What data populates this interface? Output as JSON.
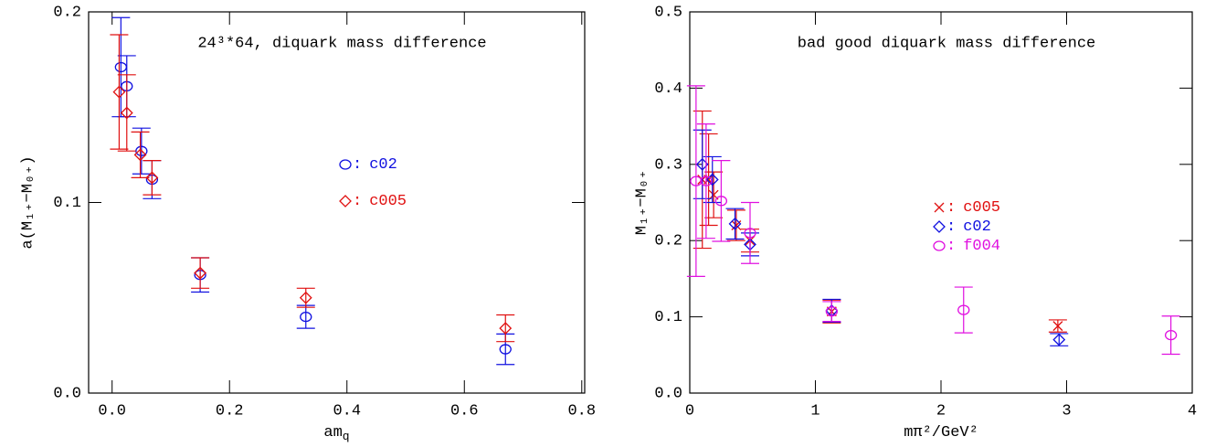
{
  "chart_data": [
    {
      "type": "scatter",
      "title": "24³*64, diquark mass difference",
      "x_label": "am",
      "x_label_sub": "q",
      "y_label": "a(M₁₊−M₀₊)",
      "legend_separator": ":",
      "xlim": [
        -0.04,
        0.805
      ],
      "ylim": [
        0,
        0.2
      ],
      "xticks": [
        {
          "value": 0,
          "label": "0.0"
        },
        0.2,
        0.4,
        0.6,
        0.8
      ],
      "yticks": [
        {
          "value": 0,
          "label": "0.0"
        },
        0.1,
        0.2
      ],
      "series": [
        {
          "name": "c02",
          "color": "#1010e0",
          "marker": "circle",
          "x": [
            0.015,
            0.025,
            0.05,
            0.068,
            0.15,
            0.33,
            0.67
          ],
          "values": [
            0.171,
            0.161,
            0.127,
            0.112,
            0.062,
            0.04,
            0.023
          ],
          "errors": [
            0.026,
            0.016,
            0.012,
            0.01,
            0.009,
            0.006,
            0.008
          ]
        },
        {
          "name": "c005",
          "color": "#e01010",
          "marker": "diamond",
          "x": [
            0.012,
            0.025,
            0.048,
            0.068,
            0.15,
            0.33,
            0.67
          ],
          "values": [
            0.158,
            0.147,
            0.125,
            0.113,
            0.063,
            0.05,
            0.034
          ],
          "errors": [
            0.03,
            0.02,
            0.012,
            0.009,
            0.008,
            0.005,
            0.007
          ]
        }
      ]
    },
    {
      "type": "scatter",
      "title": "bad good diquark mass difference",
      "x_label": "mπ²/GeV²",
      "y_label": "M₁₊−M₀₊",
      "legend_separator": ":",
      "xlim": [
        0,
        4
      ],
      "ylim": [
        0,
        0.5
      ],
      "xticks": [
        0,
        1,
        2,
        3,
        4
      ],
      "yticks": [
        {
          "value": 0,
          "label": "0.0"
        },
        0.1,
        0.2,
        0.3,
        0.4,
        0.5
      ],
      "series": [
        {
          "name": "c005",
          "color": "#e01010",
          "marker": "x",
          "x": [
            0.1,
            0.15,
            0.19,
            0.37,
            0.48,
            1.13,
            2.93
          ],
          "values": [
            0.28,
            0.28,
            0.26,
            0.22,
            0.2,
            0.107,
            0.088
          ],
          "errors": [
            0.09,
            0.06,
            0.03,
            0.02,
            0.015,
            0.015,
            0.008
          ]
        },
        {
          "name": "c02",
          "color": "#1010e0",
          "marker": "diamond",
          "x": [
            0.1,
            0.18,
            0.36,
            0.48,
            1.13,
            2.94
          ],
          "values": [
            0.3,
            0.28,
            0.222,
            0.195,
            0.108,
            0.07
          ],
          "errors": [
            0.045,
            0.03,
            0.02,
            0.015,
            0.015,
            0.008
          ]
        },
        {
          "name": "f004",
          "color": "#e010e0",
          "marker": "circle",
          "x": [
            0.05,
            0.13,
            0.25,
            0.48,
            1.13,
            2.18,
            3.83
          ],
          "values": [
            0.278,
            0.278,
            0.252,
            0.21,
            0.107,
            0.109,
            0.076
          ],
          "errors": [
            0.125,
            0.075,
            0.053,
            0.04,
            0.013,
            0.03,
            0.025
          ]
        }
      ]
    }
  ]
}
